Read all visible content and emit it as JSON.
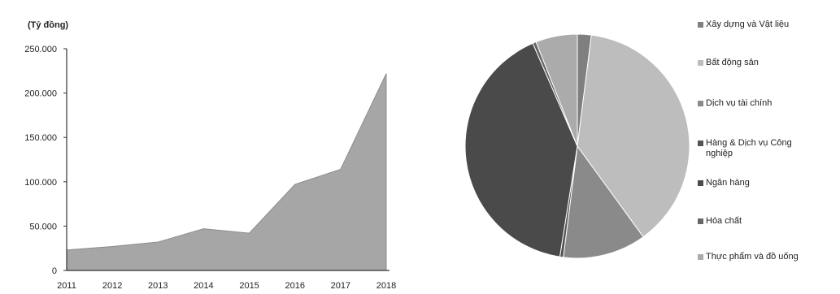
{
  "chart_data": [
    {
      "type": "area",
      "unit_label": "(Tỷ đồng)",
      "categories": [
        "2011",
        "2012",
        "2013",
        "2014",
        "2015",
        "2016",
        "2017",
        "2018"
      ],
      "values": [
        23000,
        27000,
        32000,
        47000,
        42000,
        97000,
        114000,
        222000
      ],
      "ylim": [
        0,
        250000
      ],
      "yticks": [
        "0",
        "50.000",
        "100.000",
        "150.000",
        "200.000",
        "250.000"
      ],
      "grid": false,
      "colors": {
        "fill": "#a6a6a6",
        "stroke": "#8c8c8c",
        "axis": "#333333"
      }
    },
    {
      "type": "pie",
      "legend_position": "right",
      "slices": [
        {
          "label": "Xây dựng và Vật liệu",
          "value": 2,
          "color": "#7f7f7f"
        },
        {
          "label": "Bất động sản",
          "value": 38,
          "color": "#bdbdbd"
        },
        {
          "label": "Dịch vụ tài chính",
          "value": 12,
          "color": "#8a8a8a"
        },
        {
          "label": "Hàng & Dịch vụ Công nghiệp",
          "value": 0.5,
          "color": "#555555"
        },
        {
          "label": "Ngân hàng",
          "value": 41,
          "color": "#4a4a4a"
        },
        {
          "label": "Hóa chất",
          "value": 0.5,
          "color": "#666666"
        },
        {
          "label": "Thực phẩm và đồ uống",
          "value": 6,
          "color": "#ababab"
        }
      ]
    }
  ]
}
